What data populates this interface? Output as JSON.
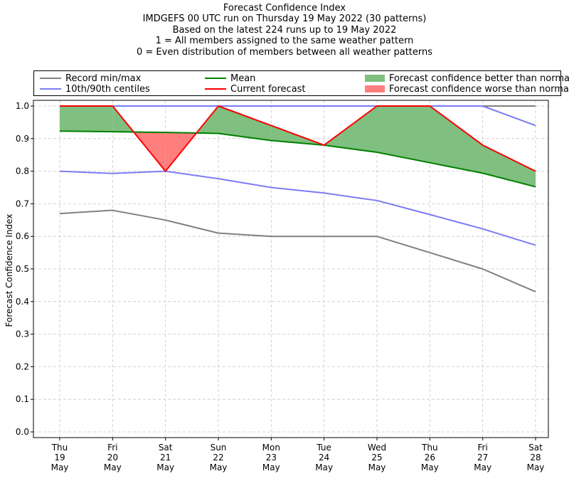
{
  "titles": {
    "line1": "Forecast Confidence Index",
    "line2": "IMDGEFS 00 UTC run on Thursday 19 May 2022 (30 patterns)",
    "line3": "Based on the latest 224 runs up to 19 May 2022",
    "line4": "1 = All members assigned to the same weather pattern",
    "line5": "0 = Even distribution of members between all weather patterns"
  },
  "legend": {
    "record": "Record min/max",
    "centiles": "10th/90th centiles",
    "mean": "Mean",
    "current": "Current forecast",
    "better": "Forecast confidence better than normal",
    "worse": "Forecast confidence worse than normal"
  },
  "colors": {
    "record": "#808080",
    "centiles": "#7b7bf5",
    "mean": "#008000",
    "current": "#ff0000",
    "better": "#7fbf7f",
    "worse": "#ff7f7f"
  },
  "chart_data": {
    "type": "line",
    "title": "Forecast Confidence Index",
    "xlabel": "",
    "ylabel": "Forecast Confidence Index",
    "ylim": [
      0,
      1.0
    ],
    "yticks": [
      "0.0",
      "0.1",
      "0.2",
      "0.3",
      "0.4",
      "0.5",
      "0.6",
      "0.7",
      "0.8",
      "0.9",
      "1.0"
    ],
    "grid": true,
    "legend_position": "top",
    "categories": [
      [
        "Thu",
        "19",
        "May"
      ],
      [
        "Fri",
        "20",
        "May"
      ],
      [
        "Sat",
        "21",
        "May"
      ],
      [
        "Sun",
        "22",
        "May"
      ],
      [
        "Mon",
        "23",
        "May"
      ],
      [
        "Tue",
        "24",
        "May"
      ],
      [
        "Wed",
        "25",
        "May"
      ],
      [
        "Thu",
        "26",
        "May"
      ],
      [
        "Fri",
        "27",
        "May"
      ],
      [
        "Sat",
        "28",
        "May"
      ]
    ],
    "series": [
      {
        "name": "Record max",
        "key": "record",
        "values": [
          1.0,
          1.0,
          1.0,
          1.0,
          1.0,
          1.0,
          1.0,
          1.0,
          1.0,
          1.0
        ]
      },
      {
        "name": "Record min",
        "key": "record",
        "values": [
          0.67,
          0.68,
          0.65,
          0.61,
          0.6,
          0.6,
          0.6,
          0.55,
          0.5,
          0.43
        ]
      },
      {
        "name": "90th centile",
        "key": "centiles",
        "values": [
          1.0,
          1.0,
          1.0,
          1.0,
          1.0,
          1.0,
          1.0,
          1.0,
          1.0,
          0.94
        ]
      },
      {
        "name": "10th centile",
        "key": "centiles",
        "values": [
          0.8,
          0.793,
          0.8,
          0.777,
          0.75,
          0.733,
          0.71,
          0.667,
          0.623,
          0.573
        ]
      },
      {
        "name": "Mean",
        "key": "mean",
        "values": [
          0.923,
          0.921,
          0.919,
          0.916,
          0.894,
          0.88,
          0.858,
          0.826,
          0.794,
          0.752
        ]
      },
      {
        "name": "Current forecast",
        "key": "current",
        "values": [
          1.0,
          1.0,
          0.8,
          1.0,
          0.94,
          0.88,
          1.0,
          1.0,
          0.88,
          0.8
        ]
      }
    ]
  }
}
